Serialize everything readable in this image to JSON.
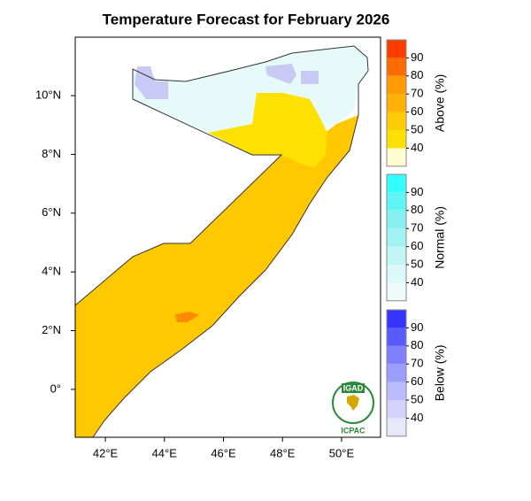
{
  "title": "Temperature Forecast for February 2026",
  "map": {
    "xlim": [
      40.98,
      51.32
    ],
    "ylim": [
      -1.63,
      11.99
    ],
    "xticks": [
      {
        "value": 42,
        "label": "42°E"
      },
      {
        "value": 44,
        "label": "44°E"
      },
      {
        "value": 46,
        "label": "46°E"
      },
      {
        "value": 48,
        "label": "48°E"
      },
      {
        "value": 50,
        "label": "50°E"
      }
    ],
    "yticks": [
      {
        "value": 0,
        "label": "0°"
      },
      {
        "value": 2,
        "label": "2°N"
      },
      {
        "value": 4,
        "label": "4°N"
      },
      {
        "value": 6,
        "label": "6°N"
      },
      {
        "value": 8,
        "label": "8°N"
      },
      {
        "value": 10,
        "label": "10°N"
      }
    ]
  },
  "legend": [
    {
      "title": "Above (%)",
      "ticks": [
        40,
        50,
        60,
        70,
        80,
        90
      ],
      "colors": [
        "#fffdd0",
        "#ffe100",
        "#ffcc00",
        "#ffb000",
        "#ff9a00",
        "#ff6a00",
        "#ff3c00"
      ]
    },
    {
      "title": "Normal (%)",
      "ticks": [
        40,
        50,
        60,
        70,
        80,
        90
      ],
      "colors": [
        "#f0fafa",
        "#ddf8f8",
        "#c2f6f6",
        "#a5f2f2",
        "#88f0f0",
        "#60f5f5",
        "#33ffff"
      ]
    },
    {
      "title": "Below (%)",
      "ticks": [
        40,
        50,
        60,
        70,
        80,
        90
      ],
      "colors": [
        "#e8e8fa",
        "#d2d2fa",
        "#bbbbff",
        "#9d9dff",
        "#7f7fff",
        "#5a5aff",
        "#3535ff"
      ]
    }
  ],
  "logo": {
    "top": "IGAD",
    "bottom": "ICPAC"
  }
}
